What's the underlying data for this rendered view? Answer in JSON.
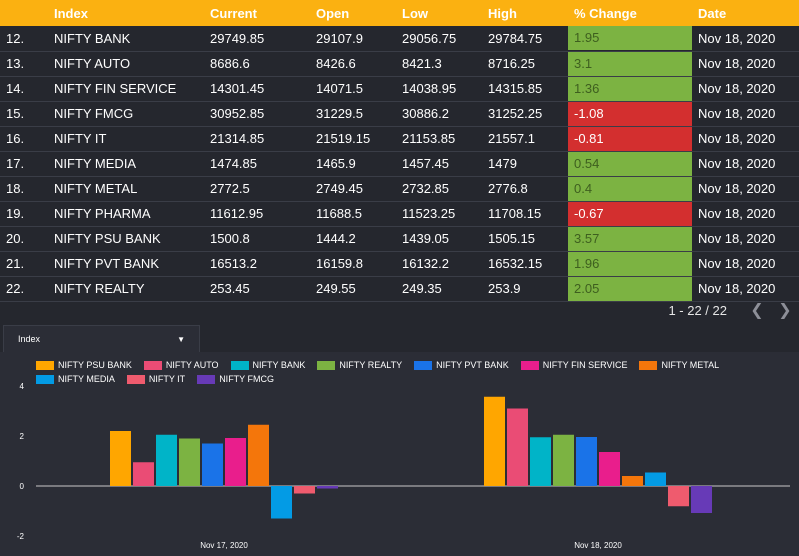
{
  "table": {
    "headers": [
      "",
      "Index",
      "Current",
      "Open",
      "Low",
      "High",
      "% Change",
      "Date"
    ],
    "rows": [
      {
        "num": "12.",
        "index": "NIFTY BANK",
        "current": "29749.85",
        "open": "29107.9",
        "low": "29056.75",
        "high": "29784.75",
        "pct": "1.95",
        "date": "Nov 18, 2020"
      },
      {
        "num": "13.",
        "index": "NIFTY AUTO",
        "current": "8686.6",
        "open": "8426.6",
        "low": "8421.3",
        "high": "8716.25",
        "pct": "3.1",
        "date": "Nov 18, 2020"
      },
      {
        "num": "14.",
        "index": "NIFTY FIN SERVICE",
        "current": "14301.45",
        "open": "14071.5",
        "low": "14038.95",
        "high": "14315.85",
        "pct": "1.36",
        "date": "Nov 18, 2020"
      },
      {
        "num": "15.",
        "index": "NIFTY FMCG",
        "current": "30952.85",
        "open": "31229.5",
        "low": "30886.2",
        "high": "31252.25",
        "pct": "-1.08",
        "date": "Nov 18, 2020"
      },
      {
        "num": "16.",
        "index": "NIFTY IT",
        "current": "21314.85",
        "open": "21519.15",
        "low": "21153.85",
        "high": "21557.1",
        "pct": "-0.81",
        "date": "Nov 18, 2020"
      },
      {
        "num": "17.",
        "index": "NIFTY MEDIA",
        "current": "1474.85",
        "open": "1465.9",
        "low": "1457.45",
        "high": "1479",
        "pct": "0.54",
        "date": "Nov 18, 2020"
      },
      {
        "num": "18.",
        "index": "NIFTY METAL",
        "current": "2772.5",
        "open": "2749.45",
        "low": "2732.85",
        "high": "2776.8",
        "pct": "0.4",
        "date": "Nov 18, 2020"
      },
      {
        "num": "19.",
        "index": "NIFTY PHARMA",
        "current": "11612.95",
        "open": "11688.5",
        "low": "11523.25",
        "high": "11708.15",
        "pct": "-0.67",
        "date": "Nov 18, 2020"
      },
      {
        "num": "20.",
        "index": "NIFTY PSU BANK",
        "current": "1500.8",
        "open": "1444.2",
        "low": "1439.05",
        "high": "1505.15",
        "pct": "3.57",
        "date": "Nov 18, 2020"
      },
      {
        "num": "21.",
        "index": "NIFTY PVT BANK",
        "current": "16513.2",
        "open": "16159.8",
        "low": "16132.2",
        "high": "16532.15",
        "pct": "1.96",
        "date": "Nov 18, 2020"
      },
      {
        "num": "22.",
        "index": "NIFTY REALTY",
        "current": "253.45",
        "open": "249.55",
        "low": "249.35",
        "high": "253.9",
        "pct": "2.05",
        "date": "Nov 18, 2020"
      }
    ],
    "colors": {
      "positive": "#7cb342",
      "negative": "#d32f2f",
      "header": "#fbb111"
    }
  },
  "pager": {
    "range": "1 - 22 / 22",
    "prev_icon": "chevron-left-icon",
    "next_icon": "chevron-right-icon"
  },
  "filter": {
    "label": "Index",
    "icon": "caret-down-icon"
  },
  "chart_data": {
    "type": "bar",
    "categories": [
      "Nov 17, 2020",
      "Nov 18, 2020"
    ],
    "ylim": [
      -2,
      4
    ],
    "yticks": [
      "-2",
      "0",
      "2",
      "4"
    ],
    "legend_position": "top-left",
    "series": [
      {
        "name": "NIFTY PSU BANK",
        "color": "#ffa600",
        "values": [
          2.2,
          3.57
        ]
      },
      {
        "name": "NIFTY AUTO",
        "color": "#ea4c75",
        "values": [
          0.95,
          3.1
        ]
      },
      {
        "name": "NIFTY BANK",
        "color": "#00b4c8",
        "values": [
          2.05,
          1.95
        ]
      },
      {
        "name": "NIFTY REALTY",
        "color": "#7cb342",
        "values": [
          1.9,
          2.05
        ]
      },
      {
        "name": "NIFTY PVT BANK",
        "color": "#1a73e8",
        "values": [
          1.7,
          1.96
        ]
      },
      {
        "name": "NIFTY FIN SERVICE",
        "color": "#e91e8c",
        "values": [
          1.92,
          1.36
        ]
      },
      {
        "name": "NIFTY METAL",
        "color": "#f4760b",
        "values": [
          2.45,
          0.4
        ]
      },
      {
        "name": "NIFTY MEDIA",
        "color": "#039be5",
        "values": [
          -1.3,
          0.54
        ]
      },
      {
        "name": "NIFTY IT",
        "color": "#ef5b6e",
        "values": [
          -0.3,
          -0.81
        ]
      },
      {
        "name": "NIFTY FMCG",
        "color": "#673ab7",
        "values": [
          -0.1,
          -1.08
        ]
      }
    ]
  }
}
